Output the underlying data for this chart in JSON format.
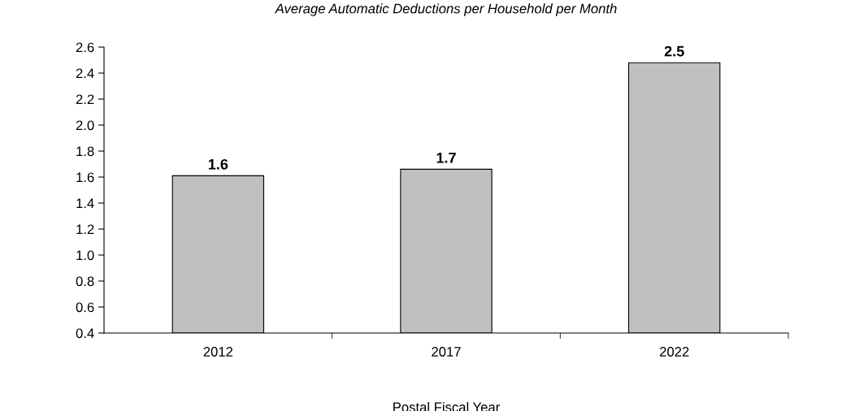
{
  "chart_data": {
    "type": "bar",
    "title": "Average Automatic Deductions per Household per Month",
    "xlabel": "Postal Fiscal Year",
    "categories": [
      "2012",
      "2017",
      "2022"
    ],
    "values": [
      1.61,
      1.66,
      2.48
    ],
    "value_labels": [
      "1.6",
      "1.7",
      "2.5"
    ],
    "color": "#c0c0c0",
    "ylim": [
      0.4,
      2.6
    ],
    "yticks": [
      {
        "value": 0.4,
        "label": "0.4"
      },
      {
        "value": 0.6,
        "label": "0.6"
      },
      {
        "value": 0.8,
        "label": "0.8"
      },
      {
        "value": 1.0,
        "label": "1.0"
      },
      {
        "value": 1.2,
        "label": "1.2"
      },
      {
        "value": 1.4,
        "label": "1.4"
      },
      {
        "value": 1.6,
        "label": "1.6"
      },
      {
        "value": 1.8,
        "label": "1.8"
      },
      {
        "value": 2.0,
        "label": "2.0"
      },
      {
        "value": 2.2,
        "label": "2.2"
      },
      {
        "value": 2.4,
        "label": "2.4"
      },
      {
        "value": 2.6,
        "label": "2.6"
      }
    ],
    "grid": false,
    "legend": false
  }
}
